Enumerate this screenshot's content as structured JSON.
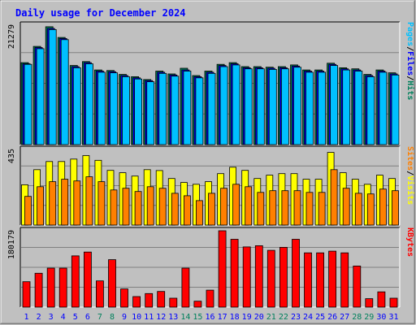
{
  "chart_data": {
    "type": "bar",
    "title": "Daily usage for December 2024",
    "days": [
      "1",
      "2",
      "3",
      "4",
      "5",
      "6",
      "7",
      "8",
      "9",
      "10",
      "11",
      "12",
      "13",
      "14",
      "15",
      "16",
      "17",
      "18",
      "19",
      "20",
      "21",
      "22",
      "23",
      "24",
      "25",
      "26",
      "27",
      "28",
      "29",
      "30",
      "31"
    ],
    "weekend_days": [
      7,
      8,
      14,
      15,
      21,
      22,
      28,
      29
    ],
    "panels": [
      {
        "id": "hits-files-pages",
        "ymax": 21279,
        "ymax_label": "21279",
        "series": [
          {
            "name": "Hits",
            "color": "#00805c",
            "values": [
              14600,
              17500,
              21000,
              19100,
              14100,
              14800,
              13300,
              13200,
              12500,
              12100,
              11600,
              13100,
              12600,
              13600,
              12300,
              13100,
              14300,
              14600,
              13900,
              13900,
              13800,
              13900,
              14200,
              13300,
              13300,
              14500,
              13700,
              13500,
              12500,
              13300,
              12800
            ]
          },
          {
            "name": "Files",
            "color": "#0000ff",
            "values": [
              14400,
              17300,
              20700,
              18900,
              13900,
              14600,
              13100,
              13000,
              12300,
              11900,
              11400,
              12900,
              12400,
              13300,
              12100,
              12900,
              14100,
              14400,
              13700,
              13700,
              13600,
              13700,
              14000,
              13100,
              13100,
              14300,
              13500,
              13300,
              12300,
              13100,
              12600
            ]
          },
          {
            "name": "Pages",
            "color": "#00c0ff",
            "values": [
              14300,
              17100,
              20500,
              18700,
              13700,
              14400,
              12900,
              12800,
              12100,
              11700,
              11200,
              12700,
              12200,
              13100,
              11900,
              12700,
              13900,
              14200,
              13500,
              13500,
              13400,
              13500,
              13800,
              12900,
              12900,
              14100,
              13300,
              13100,
              12100,
              12900,
              12400
            ]
          }
        ]
      },
      {
        "id": "visits-sites",
        "ymax": 435,
        "ymax_label": "435",
        "series": [
          {
            "name": "Visits",
            "color": "#ffff00",
            "values": [
              232,
              319,
              366,
              366,
              380,
              400,
              373,
              315,
              301,
              282,
              319,
              314,
              268,
              245,
              235,
              250,
              296,
              333,
              315,
              268,
              287,
              296,
              296,
              264,
              264,
              418,
              301,
              264,
              235,
              287,
              268
            ]
          },
          {
            "name": "Sites",
            "color": "#ff8000",
            "values": [
              165,
              221,
              250,
              264,
              254,
              278,
              250,
              202,
              212,
              193,
              221,
              212,
              183,
              169,
              141,
              183,
              212,
              235,
              221,
              188,
              198,
              198,
              198,
              188,
              188,
              319,
              212,
              183,
              179,
              207,
              198
            ]
          }
        ]
      },
      {
        "id": "kbytes",
        "ymax": 180179,
        "ymax_label": "180179",
        "series": [
          {
            "name": "KBytes",
            "color": "#ff0000",
            "values": [
              60000,
              80000,
              92000,
              92000,
              121000,
              130000,
              62000,
              112000,
              43000,
              25000,
              32000,
              37000,
              21000,
              92000,
              14000,
              40000,
              180179,
              160000,
              142000,
              145000,
              134000,
              141000,
              160000,
              128000,
              128000,
              132000,
              128000,
              97000,
              20000,
              36000,
              21000
            ]
          }
        ]
      }
    ],
    "legends": [
      {
        "panel": "hits-files-pages",
        "items": [
          {
            "text": "Pages",
            "color": "#00c0ff"
          },
          {
            "text": "/",
            "color": "#000000"
          },
          {
            "text": "Files",
            "color": "#0000ff"
          },
          {
            "text": "/",
            "color": "#000000"
          },
          {
            "text": "Hits",
            "color": "#00805c"
          }
        ]
      },
      {
        "panel": "visits-sites",
        "items": [
          {
            "text": "Sites",
            "color": "#ff8000"
          },
          {
            "text": "/",
            "color": "#000000"
          },
          {
            "text": "Visits",
            "color": "#ffff00"
          }
        ]
      },
      {
        "panel": "kbytes",
        "items": [
          {
            "text": "KBytes",
            "color": "#ff0000"
          }
        ]
      }
    ],
    "colors": {
      "frame": "#c0c0c0",
      "plot": "#c0c0c0",
      "title": "#0000ff",
      "weekday_label": "#0000ff",
      "weekend_label": "#00805c",
      "axis_label": "#000000"
    }
  }
}
